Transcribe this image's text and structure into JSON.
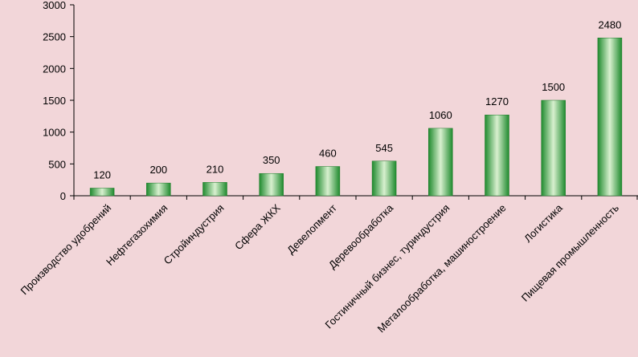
{
  "chart_data": {
    "type": "bar",
    "categories": [
      "Производство удобрений",
      "Нефтегазохимия",
      "Стройиндустрия",
      "Сфера ЖКХ",
      "Девелопмент",
      "Деревообработка",
      "Гостиничный бизнес, туриндустрия",
      "Металообработка, машиностроение",
      "Логистика",
      "Пищевая промышленность"
    ],
    "values": [
      120,
      200,
      210,
      350,
      460,
      545,
      1060,
      1270,
      1500,
      2480
    ],
    "data_labels": [
      "120",
      "200",
      "210",
      "350",
      "460",
      "545",
      "1060",
      "1270",
      "1500",
      "2480"
    ],
    "yticks": [
      "0",
      "500",
      "1000",
      "1500",
      "2000",
      "2500",
      "3000"
    ],
    "ylim": [
      0,
      3000
    ],
    "grid": false,
    "legend": "none",
    "title": "",
    "xlabel": "",
    "ylabel": "",
    "colors": {
      "background": "#f2d6d9",
      "bar_dark": "#1f8a2e",
      "bar_light": "#d8f0cf",
      "axis": "#000000"
    }
  }
}
